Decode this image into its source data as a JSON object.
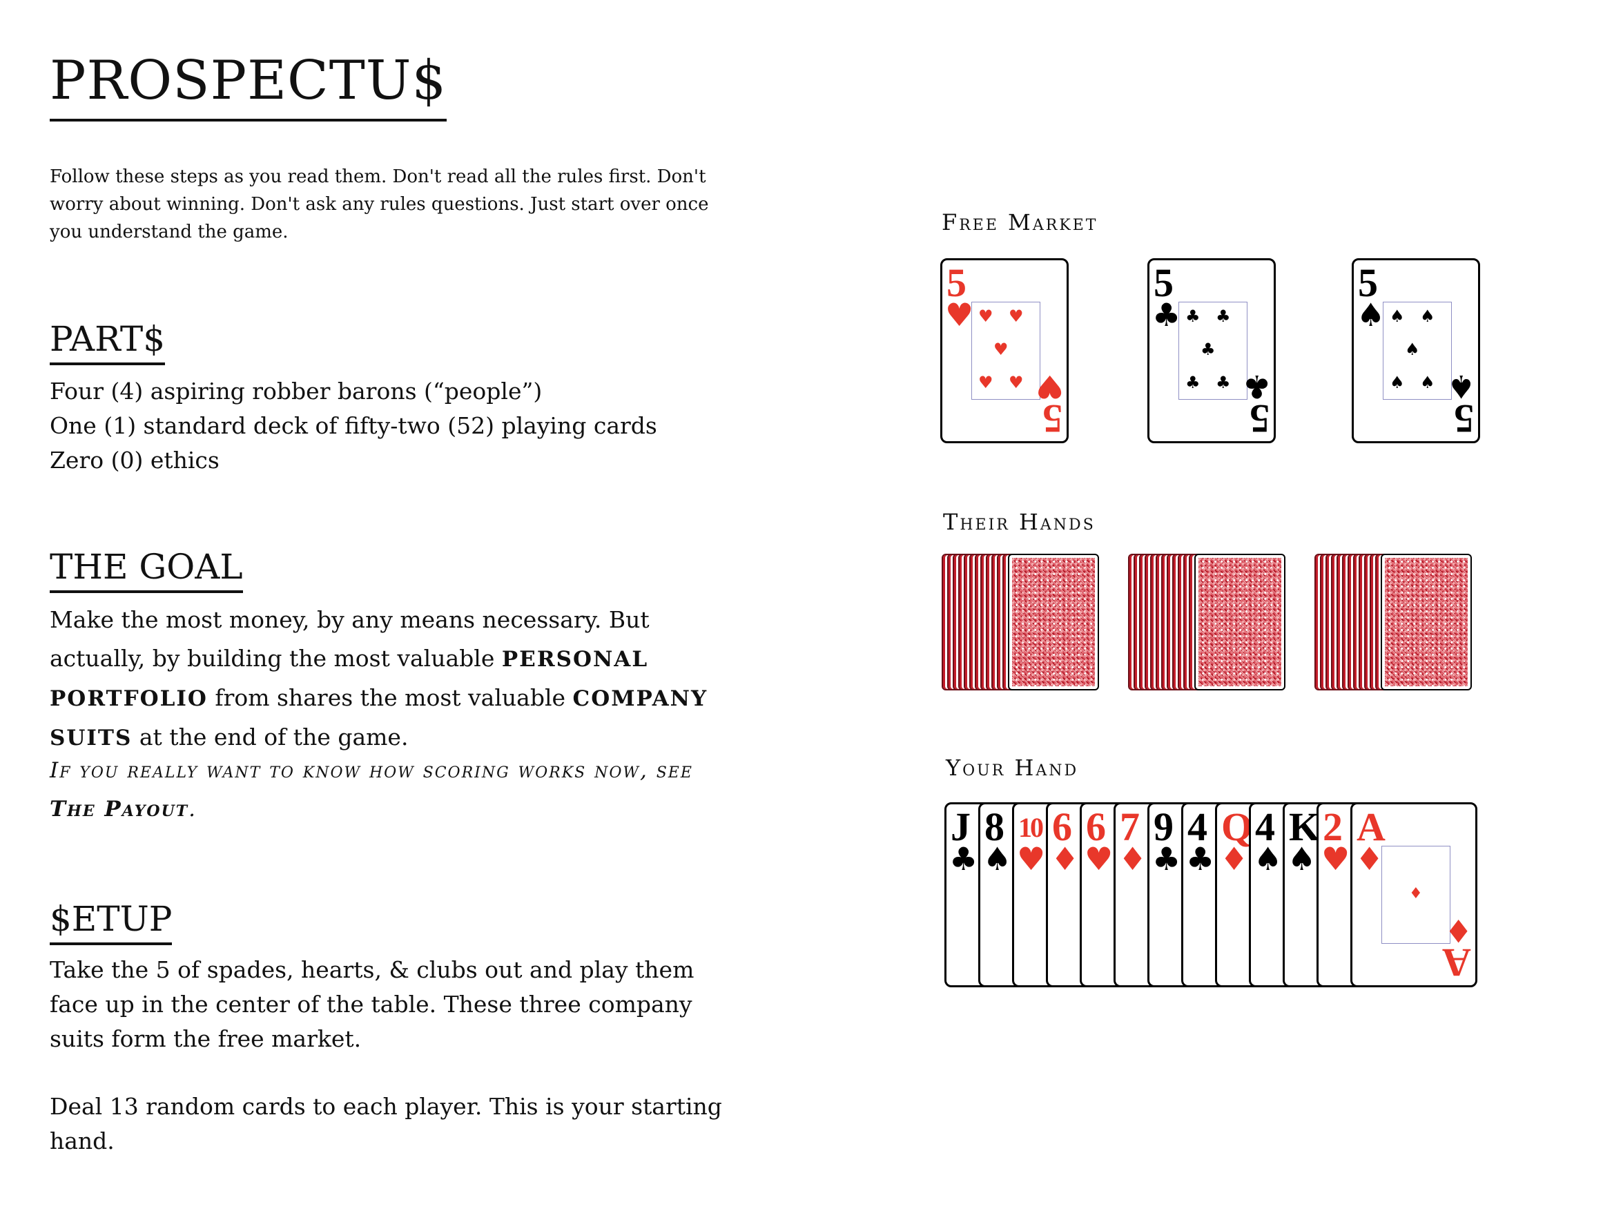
{
  "title": "PROSPECTU$",
  "intro": "Follow these steps as you read them. Don't read all the rules first. Don't worry about winning. Don't ask any rules questions. Just start over once you understand the game.",
  "parts": {
    "heading": "PART$",
    "lines": [
      "Four (4) aspiring robber barons (“people”)",
      "One (1) standard deck of fifty-two (52) playing cards",
      "Zero (0) ethics"
    ]
  },
  "goal": {
    "heading": "THE GOAL",
    "text1": "Make the most money, by any means necessary. But actually, by building the most valuable ",
    "bold1": "PERSONAL PORTFOLIO",
    "text2": " from shares the most valuable ",
    "bold2": "COMPANY SUITS",
    "text3": " at the end of the game.",
    "note_text": "If you really want to know how scoring works now, see ",
    "note_link": "The Payout",
    "note_end": "."
  },
  "setup": {
    "heading": "$ETUP",
    "para1": "Take the 5 of spades, hearts, & clubs out and play them face up in the center of the table. These three company suits form the free market.",
    "para2": "Deal 13 random cards to each player. This is your starting hand."
  },
  "free_market": {
    "label": "Free Market",
    "cards": [
      {
        "rank": "5",
        "suit": "♥",
        "color": "#e8372a"
      },
      {
        "rank": "5",
        "suit": "♣",
        "color": "#000000"
      },
      {
        "rank": "5",
        "suit": "♠",
        "color": "#000000"
      }
    ]
  },
  "their_hands": {
    "label": "Their Hands",
    "hands": [
      {
        "cards": 13
      },
      {
        "cards": 13
      },
      {
        "cards": 13
      }
    ]
  },
  "your_hand": {
    "label": "Your Hand",
    "cards": [
      {
        "rank": "J",
        "suit": "♣",
        "color": "#000000"
      },
      {
        "rank": "8",
        "suit": "♠",
        "color": "#000000"
      },
      {
        "rank": "10",
        "suit": "♥",
        "color": "#e8372a"
      },
      {
        "rank": "6",
        "suit": "♦",
        "color": "#e8372a"
      },
      {
        "rank": "6",
        "suit": "♥",
        "color": "#e8372a"
      },
      {
        "rank": "7",
        "suit": "♦",
        "color": "#e8372a"
      },
      {
        "rank": "9",
        "suit": "♣",
        "color": "#000000"
      },
      {
        "rank": "4",
        "suit": "♣",
        "color": "#000000"
      },
      {
        "rank": "Q",
        "suit": "♦",
        "color": "#e8372a"
      },
      {
        "rank": "4",
        "suit": "♠",
        "color": "#000000"
      },
      {
        "rank": "K",
        "suit": "♠",
        "color": "#000000"
      },
      {
        "rank": "2",
        "suit": "♥",
        "color": "#e8372a"
      },
      {
        "rank": "A",
        "suit": "♦",
        "color": "#e8372a"
      }
    ]
  }
}
